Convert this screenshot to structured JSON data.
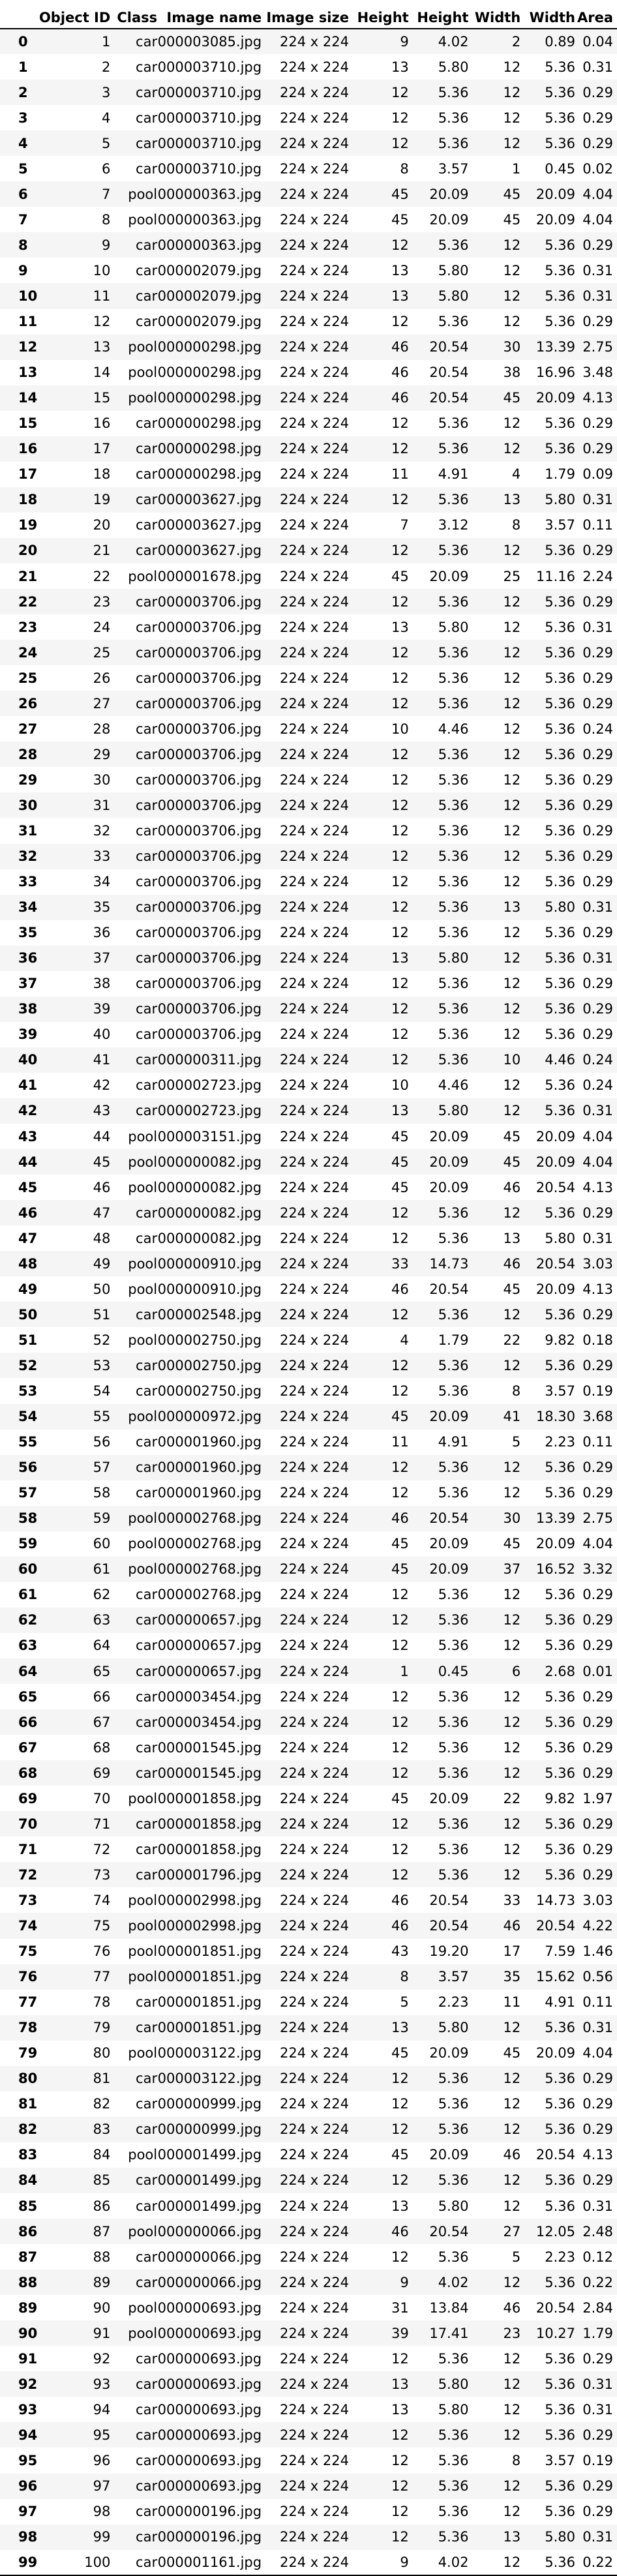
{
  "table": {
    "columns": [
      "",
      "Object ID",
      "Class",
      "Image name",
      "Image size",
      "Height",
      "Height",
      "Width",
      "Width",
      "Area"
    ],
    "rows": [
      [
        "0",
        "1",
        "car",
        "000003085.jpg",
        "224 x 224",
        "9",
        "4.02",
        "2",
        "0.89",
        "0.04"
      ],
      [
        "1",
        "2",
        "car",
        "000003710.jpg",
        "224 x 224",
        "13",
        "5.80",
        "12",
        "5.36",
        "0.31"
      ],
      [
        "2",
        "3",
        "car",
        "000003710.jpg",
        "224 x 224",
        "12",
        "5.36",
        "12",
        "5.36",
        "0.29"
      ],
      [
        "3",
        "4",
        "car",
        "000003710.jpg",
        "224 x 224",
        "12",
        "5.36",
        "12",
        "5.36",
        "0.29"
      ],
      [
        "4",
        "5",
        "car",
        "000003710.jpg",
        "224 x 224",
        "12",
        "5.36",
        "12",
        "5.36",
        "0.29"
      ],
      [
        "5",
        "6",
        "car",
        "000003710.jpg",
        "224 x 224",
        "8",
        "3.57",
        "1",
        "0.45",
        "0.02"
      ],
      [
        "6",
        "7",
        "pool",
        "000000363.jpg",
        "224 x 224",
        "45",
        "20.09",
        "45",
        "20.09",
        "4.04"
      ],
      [
        "7",
        "8",
        "pool",
        "000000363.jpg",
        "224 x 224",
        "45",
        "20.09",
        "45",
        "20.09",
        "4.04"
      ],
      [
        "8",
        "9",
        "car",
        "000000363.jpg",
        "224 x 224",
        "12",
        "5.36",
        "12",
        "5.36",
        "0.29"
      ],
      [
        "9",
        "10",
        "car",
        "000002079.jpg",
        "224 x 224",
        "13",
        "5.80",
        "12",
        "5.36",
        "0.31"
      ],
      [
        "10",
        "11",
        "car",
        "000002079.jpg",
        "224 x 224",
        "13",
        "5.80",
        "12",
        "5.36",
        "0.31"
      ],
      [
        "11",
        "12",
        "car",
        "000002079.jpg",
        "224 x 224",
        "12",
        "5.36",
        "12",
        "5.36",
        "0.29"
      ],
      [
        "12",
        "13",
        "pool",
        "000000298.jpg",
        "224 x 224",
        "46",
        "20.54",
        "30",
        "13.39",
        "2.75"
      ],
      [
        "13",
        "14",
        "pool",
        "000000298.jpg",
        "224 x 224",
        "46",
        "20.54",
        "38",
        "16.96",
        "3.48"
      ],
      [
        "14",
        "15",
        "pool",
        "000000298.jpg",
        "224 x 224",
        "46",
        "20.54",
        "45",
        "20.09",
        "4.13"
      ],
      [
        "15",
        "16",
        "car",
        "000000298.jpg",
        "224 x 224",
        "12",
        "5.36",
        "12",
        "5.36",
        "0.29"
      ],
      [
        "16",
        "17",
        "car",
        "000000298.jpg",
        "224 x 224",
        "12",
        "5.36",
        "12",
        "5.36",
        "0.29"
      ],
      [
        "17",
        "18",
        "car",
        "000000298.jpg",
        "224 x 224",
        "11",
        "4.91",
        "4",
        "1.79",
        "0.09"
      ],
      [
        "18",
        "19",
        "car",
        "000003627.jpg",
        "224 x 224",
        "12",
        "5.36",
        "13",
        "5.80",
        "0.31"
      ],
      [
        "19",
        "20",
        "car",
        "000003627.jpg",
        "224 x 224",
        "7",
        "3.12",
        "8",
        "3.57",
        "0.11"
      ],
      [
        "20",
        "21",
        "car",
        "000003627.jpg",
        "224 x 224",
        "12",
        "5.36",
        "12",
        "5.36",
        "0.29"
      ],
      [
        "21",
        "22",
        "pool",
        "000001678.jpg",
        "224 x 224",
        "45",
        "20.09",
        "25",
        "11.16",
        "2.24"
      ],
      [
        "22",
        "23",
        "car",
        "000003706.jpg",
        "224 x 224",
        "12",
        "5.36",
        "12",
        "5.36",
        "0.29"
      ],
      [
        "23",
        "24",
        "car",
        "000003706.jpg",
        "224 x 224",
        "13",
        "5.80",
        "12",
        "5.36",
        "0.31"
      ],
      [
        "24",
        "25",
        "car",
        "000003706.jpg",
        "224 x 224",
        "12",
        "5.36",
        "12",
        "5.36",
        "0.29"
      ],
      [
        "25",
        "26",
        "car",
        "000003706.jpg",
        "224 x 224",
        "12",
        "5.36",
        "12",
        "5.36",
        "0.29"
      ],
      [
        "26",
        "27",
        "car",
        "000003706.jpg",
        "224 x 224",
        "12",
        "5.36",
        "12",
        "5.36",
        "0.29"
      ],
      [
        "27",
        "28",
        "car",
        "000003706.jpg",
        "224 x 224",
        "10",
        "4.46",
        "12",
        "5.36",
        "0.24"
      ],
      [
        "28",
        "29",
        "car",
        "000003706.jpg",
        "224 x 224",
        "12",
        "5.36",
        "12",
        "5.36",
        "0.29"
      ],
      [
        "29",
        "30",
        "car",
        "000003706.jpg",
        "224 x 224",
        "12",
        "5.36",
        "12",
        "5.36",
        "0.29"
      ],
      [
        "30",
        "31",
        "car",
        "000003706.jpg",
        "224 x 224",
        "12",
        "5.36",
        "12",
        "5.36",
        "0.29"
      ],
      [
        "31",
        "32",
        "car",
        "000003706.jpg",
        "224 x 224",
        "12",
        "5.36",
        "12",
        "5.36",
        "0.29"
      ],
      [
        "32",
        "33",
        "car",
        "000003706.jpg",
        "224 x 224",
        "12",
        "5.36",
        "12",
        "5.36",
        "0.29"
      ],
      [
        "33",
        "34",
        "car",
        "000003706.jpg",
        "224 x 224",
        "12",
        "5.36",
        "12",
        "5.36",
        "0.29"
      ],
      [
        "34",
        "35",
        "car",
        "000003706.jpg",
        "224 x 224",
        "12",
        "5.36",
        "13",
        "5.80",
        "0.31"
      ],
      [
        "35",
        "36",
        "car",
        "000003706.jpg",
        "224 x 224",
        "12",
        "5.36",
        "12",
        "5.36",
        "0.29"
      ],
      [
        "36",
        "37",
        "car",
        "000003706.jpg",
        "224 x 224",
        "13",
        "5.80",
        "12",
        "5.36",
        "0.31"
      ],
      [
        "37",
        "38",
        "car",
        "000003706.jpg",
        "224 x 224",
        "12",
        "5.36",
        "12",
        "5.36",
        "0.29"
      ],
      [
        "38",
        "39",
        "car",
        "000003706.jpg",
        "224 x 224",
        "12",
        "5.36",
        "12",
        "5.36",
        "0.29"
      ],
      [
        "39",
        "40",
        "car",
        "000003706.jpg",
        "224 x 224",
        "12",
        "5.36",
        "12",
        "5.36",
        "0.29"
      ],
      [
        "40",
        "41",
        "car",
        "000000311.jpg",
        "224 x 224",
        "12",
        "5.36",
        "10",
        "4.46",
        "0.24"
      ],
      [
        "41",
        "42",
        "car",
        "000002723.jpg",
        "224 x 224",
        "10",
        "4.46",
        "12",
        "5.36",
        "0.24"
      ],
      [
        "42",
        "43",
        "car",
        "000002723.jpg",
        "224 x 224",
        "13",
        "5.80",
        "12",
        "5.36",
        "0.31"
      ],
      [
        "43",
        "44",
        "pool",
        "000003151.jpg",
        "224 x 224",
        "45",
        "20.09",
        "45",
        "20.09",
        "4.04"
      ],
      [
        "44",
        "45",
        "pool",
        "000000082.jpg",
        "224 x 224",
        "45",
        "20.09",
        "45",
        "20.09",
        "4.04"
      ],
      [
        "45",
        "46",
        "pool",
        "000000082.jpg",
        "224 x 224",
        "45",
        "20.09",
        "46",
        "20.54",
        "4.13"
      ],
      [
        "46",
        "47",
        "car",
        "000000082.jpg",
        "224 x 224",
        "12",
        "5.36",
        "12",
        "5.36",
        "0.29"
      ],
      [
        "47",
        "48",
        "car",
        "000000082.jpg",
        "224 x 224",
        "12",
        "5.36",
        "13",
        "5.80",
        "0.31"
      ],
      [
        "48",
        "49",
        "pool",
        "000000910.jpg",
        "224 x 224",
        "33",
        "14.73",
        "46",
        "20.54",
        "3.03"
      ],
      [
        "49",
        "50",
        "pool",
        "000000910.jpg",
        "224 x 224",
        "46",
        "20.54",
        "45",
        "20.09",
        "4.13"
      ],
      [
        "50",
        "51",
        "car",
        "000002548.jpg",
        "224 x 224",
        "12",
        "5.36",
        "12",
        "5.36",
        "0.29"
      ],
      [
        "51",
        "52",
        "pool",
        "000002750.jpg",
        "224 x 224",
        "4",
        "1.79",
        "22",
        "9.82",
        "0.18"
      ],
      [
        "52",
        "53",
        "car",
        "000002750.jpg",
        "224 x 224",
        "12",
        "5.36",
        "12",
        "5.36",
        "0.29"
      ],
      [
        "53",
        "54",
        "car",
        "000002750.jpg",
        "224 x 224",
        "12",
        "5.36",
        "8",
        "3.57",
        "0.19"
      ],
      [
        "54",
        "55",
        "pool",
        "000000972.jpg",
        "224 x 224",
        "45",
        "20.09",
        "41",
        "18.30",
        "3.68"
      ],
      [
        "55",
        "56",
        "car",
        "000001960.jpg",
        "224 x 224",
        "11",
        "4.91",
        "5",
        "2.23",
        "0.11"
      ],
      [
        "56",
        "57",
        "car",
        "000001960.jpg",
        "224 x 224",
        "12",
        "5.36",
        "12",
        "5.36",
        "0.29"
      ],
      [
        "57",
        "58",
        "car",
        "000001960.jpg",
        "224 x 224",
        "12",
        "5.36",
        "12",
        "5.36",
        "0.29"
      ],
      [
        "58",
        "59",
        "pool",
        "000002768.jpg",
        "224 x 224",
        "46",
        "20.54",
        "30",
        "13.39",
        "2.75"
      ],
      [
        "59",
        "60",
        "pool",
        "000002768.jpg",
        "224 x 224",
        "45",
        "20.09",
        "45",
        "20.09",
        "4.04"
      ],
      [
        "60",
        "61",
        "pool",
        "000002768.jpg",
        "224 x 224",
        "45",
        "20.09",
        "37",
        "16.52",
        "3.32"
      ],
      [
        "61",
        "62",
        "car",
        "000002768.jpg",
        "224 x 224",
        "12",
        "5.36",
        "12",
        "5.36",
        "0.29"
      ],
      [
        "62",
        "63",
        "car",
        "000000657.jpg",
        "224 x 224",
        "12",
        "5.36",
        "12",
        "5.36",
        "0.29"
      ],
      [
        "63",
        "64",
        "car",
        "000000657.jpg",
        "224 x 224",
        "12",
        "5.36",
        "12",
        "5.36",
        "0.29"
      ],
      [
        "64",
        "65",
        "car",
        "000000657.jpg",
        "224 x 224",
        "1",
        "0.45",
        "6",
        "2.68",
        "0.01"
      ],
      [
        "65",
        "66",
        "car",
        "000003454.jpg",
        "224 x 224",
        "12",
        "5.36",
        "12",
        "5.36",
        "0.29"
      ],
      [
        "66",
        "67",
        "car",
        "000003454.jpg",
        "224 x 224",
        "12",
        "5.36",
        "12",
        "5.36",
        "0.29"
      ],
      [
        "67",
        "68",
        "car",
        "000001545.jpg",
        "224 x 224",
        "12",
        "5.36",
        "12",
        "5.36",
        "0.29"
      ],
      [
        "68",
        "69",
        "car",
        "000001545.jpg",
        "224 x 224",
        "12",
        "5.36",
        "12",
        "5.36",
        "0.29"
      ],
      [
        "69",
        "70",
        "pool",
        "000001858.jpg",
        "224 x 224",
        "45",
        "20.09",
        "22",
        "9.82",
        "1.97"
      ],
      [
        "70",
        "71",
        "car",
        "000001858.jpg",
        "224 x 224",
        "12",
        "5.36",
        "12",
        "5.36",
        "0.29"
      ],
      [
        "71",
        "72",
        "car",
        "000001858.jpg",
        "224 x 224",
        "12",
        "5.36",
        "12",
        "5.36",
        "0.29"
      ],
      [
        "72",
        "73",
        "car",
        "000001796.jpg",
        "224 x 224",
        "12",
        "5.36",
        "12",
        "5.36",
        "0.29"
      ],
      [
        "73",
        "74",
        "pool",
        "000002998.jpg",
        "224 x 224",
        "46",
        "20.54",
        "33",
        "14.73",
        "3.03"
      ],
      [
        "74",
        "75",
        "pool",
        "000002998.jpg",
        "224 x 224",
        "46",
        "20.54",
        "46",
        "20.54",
        "4.22"
      ],
      [
        "75",
        "76",
        "pool",
        "000001851.jpg",
        "224 x 224",
        "43",
        "19.20",
        "17",
        "7.59",
        "1.46"
      ],
      [
        "76",
        "77",
        "pool",
        "000001851.jpg",
        "224 x 224",
        "8",
        "3.57",
        "35",
        "15.62",
        "0.56"
      ],
      [
        "77",
        "78",
        "car",
        "000001851.jpg",
        "224 x 224",
        "5",
        "2.23",
        "11",
        "4.91",
        "0.11"
      ],
      [
        "78",
        "79",
        "car",
        "000001851.jpg",
        "224 x 224",
        "13",
        "5.80",
        "12",
        "5.36",
        "0.31"
      ],
      [
        "79",
        "80",
        "pool",
        "000003122.jpg",
        "224 x 224",
        "45",
        "20.09",
        "45",
        "20.09",
        "4.04"
      ],
      [
        "80",
        "81",
        "car",
        "000003122.jpg",
        "224 x 224",
        "12",
        "5.36",
        "12",
        "5.36",
        "0.29"
      ],
      [
        "81",
        "82",
        "car",
        "000000999.jpg",
        "224 x 224",
        "12",
        "5.36",
        "12",
        "5.36",
        "0.29"
      ],
      [
        "82",
        "83",
        "car",
        "000000999.jpg",
        "224 x 224",
        "12",
        "5.36",
        "12",
        "5.36",
        "0.29"
      ],
      [
        "83",
        "84",
        "pool",
        "000001499.jpg",
        "224 x 224",
        "45",
        "20.09",
        "46",
        "20.54",
        "4.13"
      ],
      [
        "84",
        "85",
        "car",
        "000001499.jpg",
        "224 x 224",
        "12",
        "5.36",
        "12",
        "5.36",
        "0.29"
      ],
      [
        "85",
        "86",
        "car",
        "000001499.jpg",
        "224 x 224",
        "13",
        "5.80",
        "12",
        "5.36",
        "0.31"
      ],
      [
        "86",
        "87",
        "pool",
        "000000066.jpg",
        "224 x 224",
        "46",
        "20.54",
        "27",
        "12.05",
        "2.48"
      ],
      [
        "87",
        "88",
        "car",
        "000000066.jpg",
        "224 x 224",
        "12",
        "5.36",
        "5",
        "2.23",
        "0.12"
      ],
      [
        "88",
        "89",
        "car",
        "000000066.jpg",
        "224 x 224",
        "9",
        "4.02",
        "12",
        "5.36",
        "0.22"
      ],
      [
        "89",
        "90",
        "pool",
        "000000693.jpg",
        "224 x 224",
        "31",
        "13.84",
        "46",
        "20.54",
        "2.84"
      ],
      [
        "90",
        "91",
        "pool",
        "000000693.jpg",
        "224 x 224",
        "39",
        "17.41",
        "23",
        "10.27",
        "1.79"
      ],
      [
        "91",
        "92",
        "car",
        "000000693.jpg",
        "224 x 224",
        "12",
        "5.36",
        "12",
        "5.36",
        "0.29"
      ],
      [
        "92",
        "93",
        "car",
        "000000693.jpg",
        "224 x 224",
        "13",
        "5.80",
        "12",
        "5.36",
        "0.31"
      ],
      [
        "93",
        "94",
        "car",
        "000000693.jpg",
        "224 x 224",
        "13",
        "5.80",
        "12",
        "5.36",
        "0.31"
      ],
      [
        "94",
        "95",
        "car",
        "000000693.jpg",
        "224 x 224",
        "12",
        "5.36",
        "12",
        "5.36",
        "0.29"
      ],
      [
        "95",
        "96",
        "car",
        "000000693.jpg",
        "224 x 224",
        "12",
        "5.36",
        "8",
        "3.57",
        "0.19"
      ],
      [
        "96",
        "97",
        "car",
        "000000693.jpg",
        "224 x 224",
        "12",
        "5.36",
        "12",
        "5.36",
        "0.29"
      ],
      [
        "97",
        "98",
        "car",
        "000000196.jpg",
        "224 x 224",
        "12",
        "5.36",
        "12",
        "5.36",
        "0.29"
      ],
      [
        "98",
        "99",
        "car",
        "000000196.jpg",
        "224 x 224",
        "12",
        "5.36",
        "13",
        "5.80",
        "0.31"
      ],
      [
        "99",
        "100",
        "car",
        "000001161.jpg",
        "224 x 224",
        "9",
        "4.02",
        "12",
        "5.36",
        "0.22"
      ]
    ]
  }
}
